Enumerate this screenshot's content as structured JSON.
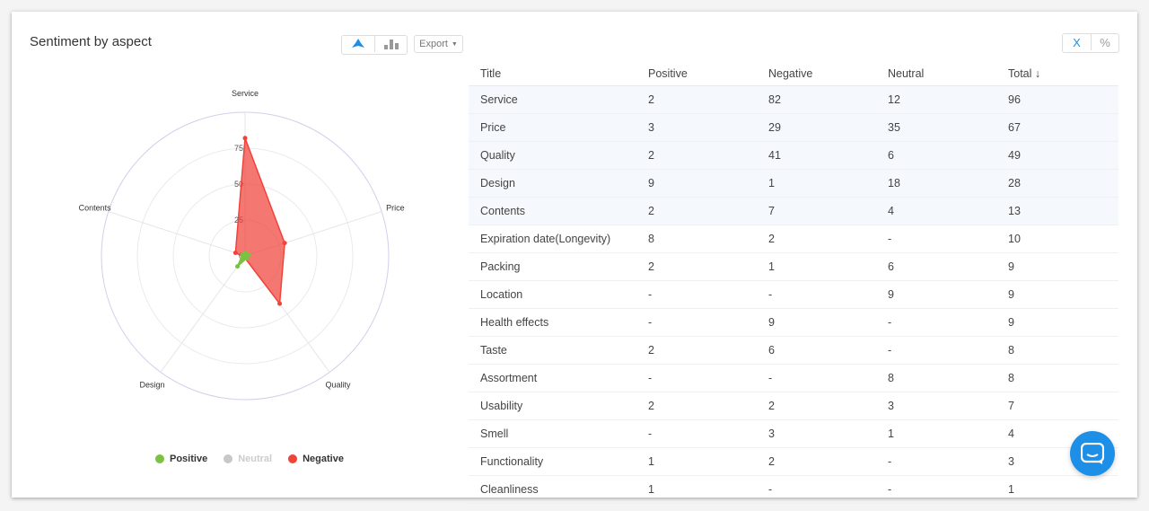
{
  "title": "Sentiment by aspect",
  "toolbar": {
    "radar_icon": "radar-chart-icon",
    "bar_icon": "bar-chart-icon",
    "export_label": "Export",
    "x_label": "X",
    "percent_label": "%"
  },
  "colors": {
    "positive": "#7cc242",
    "neutral": "#c8c8c8",
    "negative": "#f0443a",
    "accent": "#1e8fe6"
  },
  "legend": [
    {
      "label": "Positive",
      "color": "#7cc242",
      "active": true
    },
    {
      "label": "Neutral",
      "color": "#c8c8c8",
      "active": false
    },
    {
      "label": "Negative",
      "color": "#f0443a",
      "active": true
    }
  ],
  "chart_data": {
    "type": "radar",
    "categories": [
      "Service",
      "Price",
      "Quality",
      "Design",
      "Contents"
    ],
    "radial_ticks": [
      "0",
      "25",
      "50",
      "75"
    ],
    "range": [
      0,
      100
    ],
    "series": [
      {
        "name": "Positive",
        "values": [
          2,
          3,
          2,
          9,
          2
        ],
        "color": "#7cc242"
      },
      {
        "name": "Negative",
        "values": [
          82,
          29,
          41,
          1,
          7
        ],
        "color": "#f0443a"
      }
    ]
  },
  "table": {
    "columns": [
      "Title",
      "Positive",
      "Negative",
      "Neutral",
      "Total ↓"
    ],
    "rows": [
      [
        "Service",
        "2",
        "82",
        "12",
        "96"
      ],
      [
        "Price",
        "3",
        "29",
        "35",
        "67"
      ],
      [
        "Quality",
        "2",
        "41",
        "6",
        "49"
      ],
      [
        "Design",
        "9",
        "1",
        "18",
        "28"
      ],
      [
        "Contents",
        "2",
        "7",
        "4",
        "13"
      ],
      [
        "Expiration date(Longevity)",
        "8",
        "2",
        "-",
        "10"
      ],
      [
        "Packing",
        "2",
        "1",
        "6",
        "9"
      ],
      [
        "Location",
        "-",
        "-",
        "9",
        "9"
      ],
      [
        "Health effects",
        "-",
        "9",
        "-",
        "9"
      ],
      [
        "Taste",
        "2",
        "6",
        "-",
        "8"
      ],
      [
        "Assortment",
        "-",
        "-",
        "8",
        "8"
      ],
      [
        "Usability",
        "2",
        "2",
        "3",
        "7"
      ],
      [
        "Smell",
        "-",
        "3",
        "1",
        "4"
      ],
      [
        "Functionality",
        "1",
        "2",
        "-",
        "3"
      ],
      [
        "Cleanliness",
        "1",
        "-",
        "-",
        "1"
      ]
    ]
  },
  "chat_icon": "chat-icon"
}
